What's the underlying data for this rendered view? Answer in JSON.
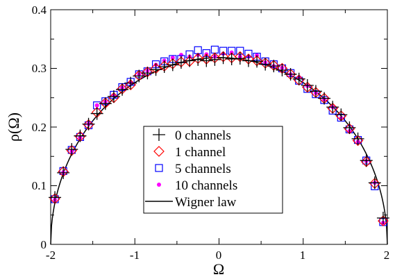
{
  "chart_data": {
    "type": "scatter",
    "title": "",
    "xlabel": "Ω",
    "ylabel": "ρ(Ω)",
    "xlim": [
      -2,
      2
    ],
    "ylim": [
      0,
      0.4
    ],
    "x_ticks": [
      "-2",
      "-1",
      "0",
      "1",
      "2"
    ],
    "y_ticks": [
      "0",
      "0.1",
      "0.2",
      "0.3",
      "0.4"
    ],
    "x_tick_values": [
      -2,
      -1,
      0,
      1,
      2
    ],
    "y_tick_values": [
      0,
      0.1,
      0.2,
      0.3,
      0.4
    ],
    "grid": false,
    "legend_position": "center-bottom",
    "series": [
      {
        "name": "0 channels",
        "marker": "plus",
        "color": "#000000",
        "x": [
          -1.95,
          -1.85,
          -1.75,
          -1.65,
          -1.55,
          -1.45,
          -1.35,
          -1.25,
          -1.15,
          -1.05,
          -0.95,
          -0.85,
          -0.75,
          -0.65,
          -0.55,
          -0.45,
          -0.35,
          -0.25,
          -0.15,
          -0.05,
          0.05,
          0.15,
          0.25,
          0.35,
          0.45,
          0.55,
          0.65,
          0.75,
          0.85,
          0.95,
          1.05,
          1.15,
          1.25,
          1.35,
          1.45,
          1.55,
          1.65,
          1.75,
          1.85,
          1.95
        ],
        "y": [
          0.08,
          0.122,
          0.162,
          0.185,
          0.205,
          0.223,
          0.24,
          0.252,
          0.264,
          0.275,
          0.287,
          0.292,
          0.298,
          0.303,
          0.306,
          0.31,
          0.313,
          0.315,
          0.313,
          0.315,
          0.318,
          0.316,
          0.317,
          0.313,
          0.312,
          0.307,
          0.304,
          0.297,
          0.29,
          0.282,
          0.271,
          0.261,
          0.249,
          0.234,
          0.221,
          0.199,
          0.18,
          0.143,
          0.105,
          0.045
        ]
      },
      {
        "name": "1 channel",
        "marker": "diamond",
        "color": "#ff0000",
        "x": [
          -1.95,
          -1.85,
          -1.75,
          -1.65,
          -1.55,
          -1.45,
          -1.35,
          -1.25,
          -1.15,
          -1.05,
          -0.95,
          -0.85,
          -0.75,
          -0.65,
          -0.55,
          -0.45,
          -0.35,
          -0.25,
          -0.15,
          -0.05,
          0.05,
          0.15,
          0.25,
          0.35,
          0.45,
          0.55,
          0.65,
          0.75,
          0.85,
          0.95,
          1.05,
          1.15,
          1.25,
          1.35,
          1.45,
          1.55,
          1.65,
          1.75,
          1.85,
          1.95
        ],
        "y": [
          0.078,
          0.124,
          0.16,
          0.184,
          0.204,
          0.225,
          0.241,
          0.25,
          0.265,
          0.272,
          0.288,
          0.294,
          0.3,
          0.304,
          0.308,
          0.311,
          0.312,
          0.317,
          0.316,
          0.318,
          0.32,
          0.318,
          0.32,
          0.316,
          0.313,
          0.309,
          0.305,
          0.3,
          0.29,
          0.28,
          0.268,
          0.259,
          0.249,
          0.232,
          0.219,
          0.197,
          0.177,
          0.141,
          0.104,
          0.04
        ]
      },
      {
        "name": "5 channels",
        "marker": "square",
        "color": "#0000ff",
        "x": [
          -1.95,
          -1.85,
          -1.75,
          -1.65,
          -1.55,
          -1.45,
          -1.35,
          -1.25,
          -1.15,
          -1.05,
          -0.95,
          -0.85,
          -0.75,
          -0.65,
          -0.55,
          -0.45,
          -0.35,
          -0.25,
          -0.15,
          -0.05,
          0.05,
          0.15,
          0.25,
          0.35,
          0.45,
          0.55,
          0.65,
          0.75,
          0.85,
          0.95,
          1.05,
          1.15,
          1.25,
          1.35,
          1.45,
          1.55,
          1.65,
          1.75,
          1.85,
          1.95
        ],
        "y": [
          0.077,
          0.125,
          0.161,
          0.183,
          0.203,
          0.237,
          0.244,
          0.255,
          0.268,
          0.277,
          0.29,
          0.295,
          0.307,
          0.312,
          0.316,
          0.316,
          0.324,
          0.331,
          0.326,
          0.332,
          0.33,
          0.33,
          0.33,
          0.325,
          0.32,
          0.312,
          0.307,
          0.3,
          0.292,
          0.279,
          0.265,
          0.256,
          0.246,
          0.228,
          0.216,
          0.196,
          0.178,
          0.143,
          0.099,
          0.038
        ]
      },
      {
        "name": "10 channels",
        "marker": "dot",
        "color": "#ff00ff",
        "x": [
          -1.95,
          -1.85,
          -1.75,
          -1.65,
          -1.55,
          -1.45,
          -1.35,
          -1.25,
          -1.15,
          -1.05,
          -0.95,
          -0.85,
          -0.75,
          -0.65,
          -0.55,
          -0.45,
          -0.35,
          -0.25,
          -0.15,
          -0.05,
          0.05,
          0.15,
          0.25,
          0.35,
          0.45,
          0.55,
          0.65,
          0.75,
          0.85,
          0.95,
          1.05,
          1.15,
          1.25,
          1.35,
          1.45,
          1.55,
          1.65,
          1.75,
          1.85,
          1.95
        ],
        "y": [
          0.076,
          0.123,
          0.159,
          0.182,
          0.205,
          0.237,
          0.243,
          0.254,
          0.267,
          0.276,
          0.29,
          0.296,
          0.306,
          0.313,
          0.318,
          0.323,
          0.32,
          0.323,
          0.324,
          0.32,
          0.325,
          0.327,
          0.32,
          0.32,
          0.322,
          0.31,
          0.304,
          0.301,
          0.29,
          0.285,
          0.27,
          0.258,
          0.247,
          0.234,
          0.215,
          0.193,
          0.175,
          0.142,
          0.105,
          0.037
        ]
      },
      {
        "name": "Wigner law",
        "marker": "line",
        "color": "#000000",
        "formula": "sqrt(4 - x^2) / (2*pi)"
      }
    ]
  }
}
